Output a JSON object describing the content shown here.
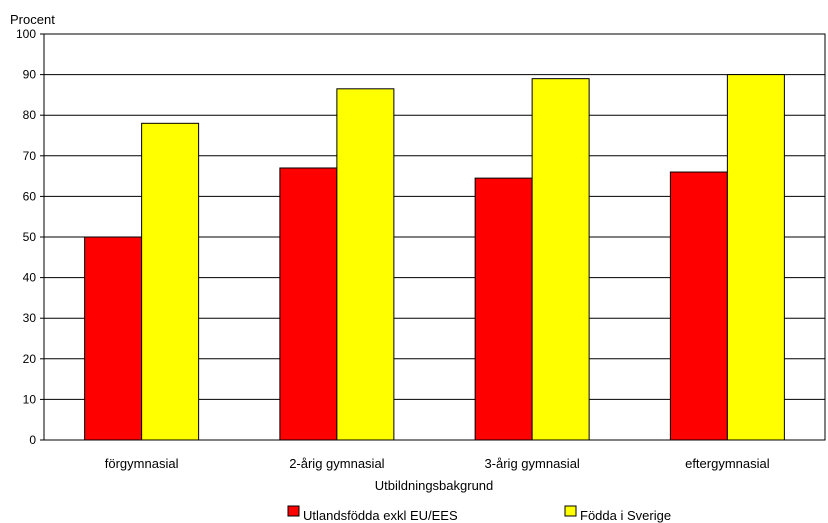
{
  "chart_data": {
    "type": "bar",
    "title": "",
    "ylabel": "Procent",
    "xlabel": "Utbildningsbakgrund",
    "categories": [
      "förgymnasial",
      "2-årig gymnasial",
      "3-årig gymnasial",
      "eftergymnasial"
    ],
    "series": [
      {
        "name": "Utlandsfödda exkl EU/EES",
        "color": "#ff0000",
        "values": [
          50,
          67,
          64.5,
          66
        ]
      },
      {
        "name": "Födda i Sverige",
        "color": "#ffff00",
        "values": [
          78,
          86.5,
          89,
          90
        ]
      }
    ],
    "ylim": [
      0,
      100
    ],
    "yticks": [
      0,
      10,
      20,
      30,
      40,
      50,
      60,
      70,
      80,
      90,
      100
    ],
    "grid": true,
    "legend_position": "bottom"
  }
}
